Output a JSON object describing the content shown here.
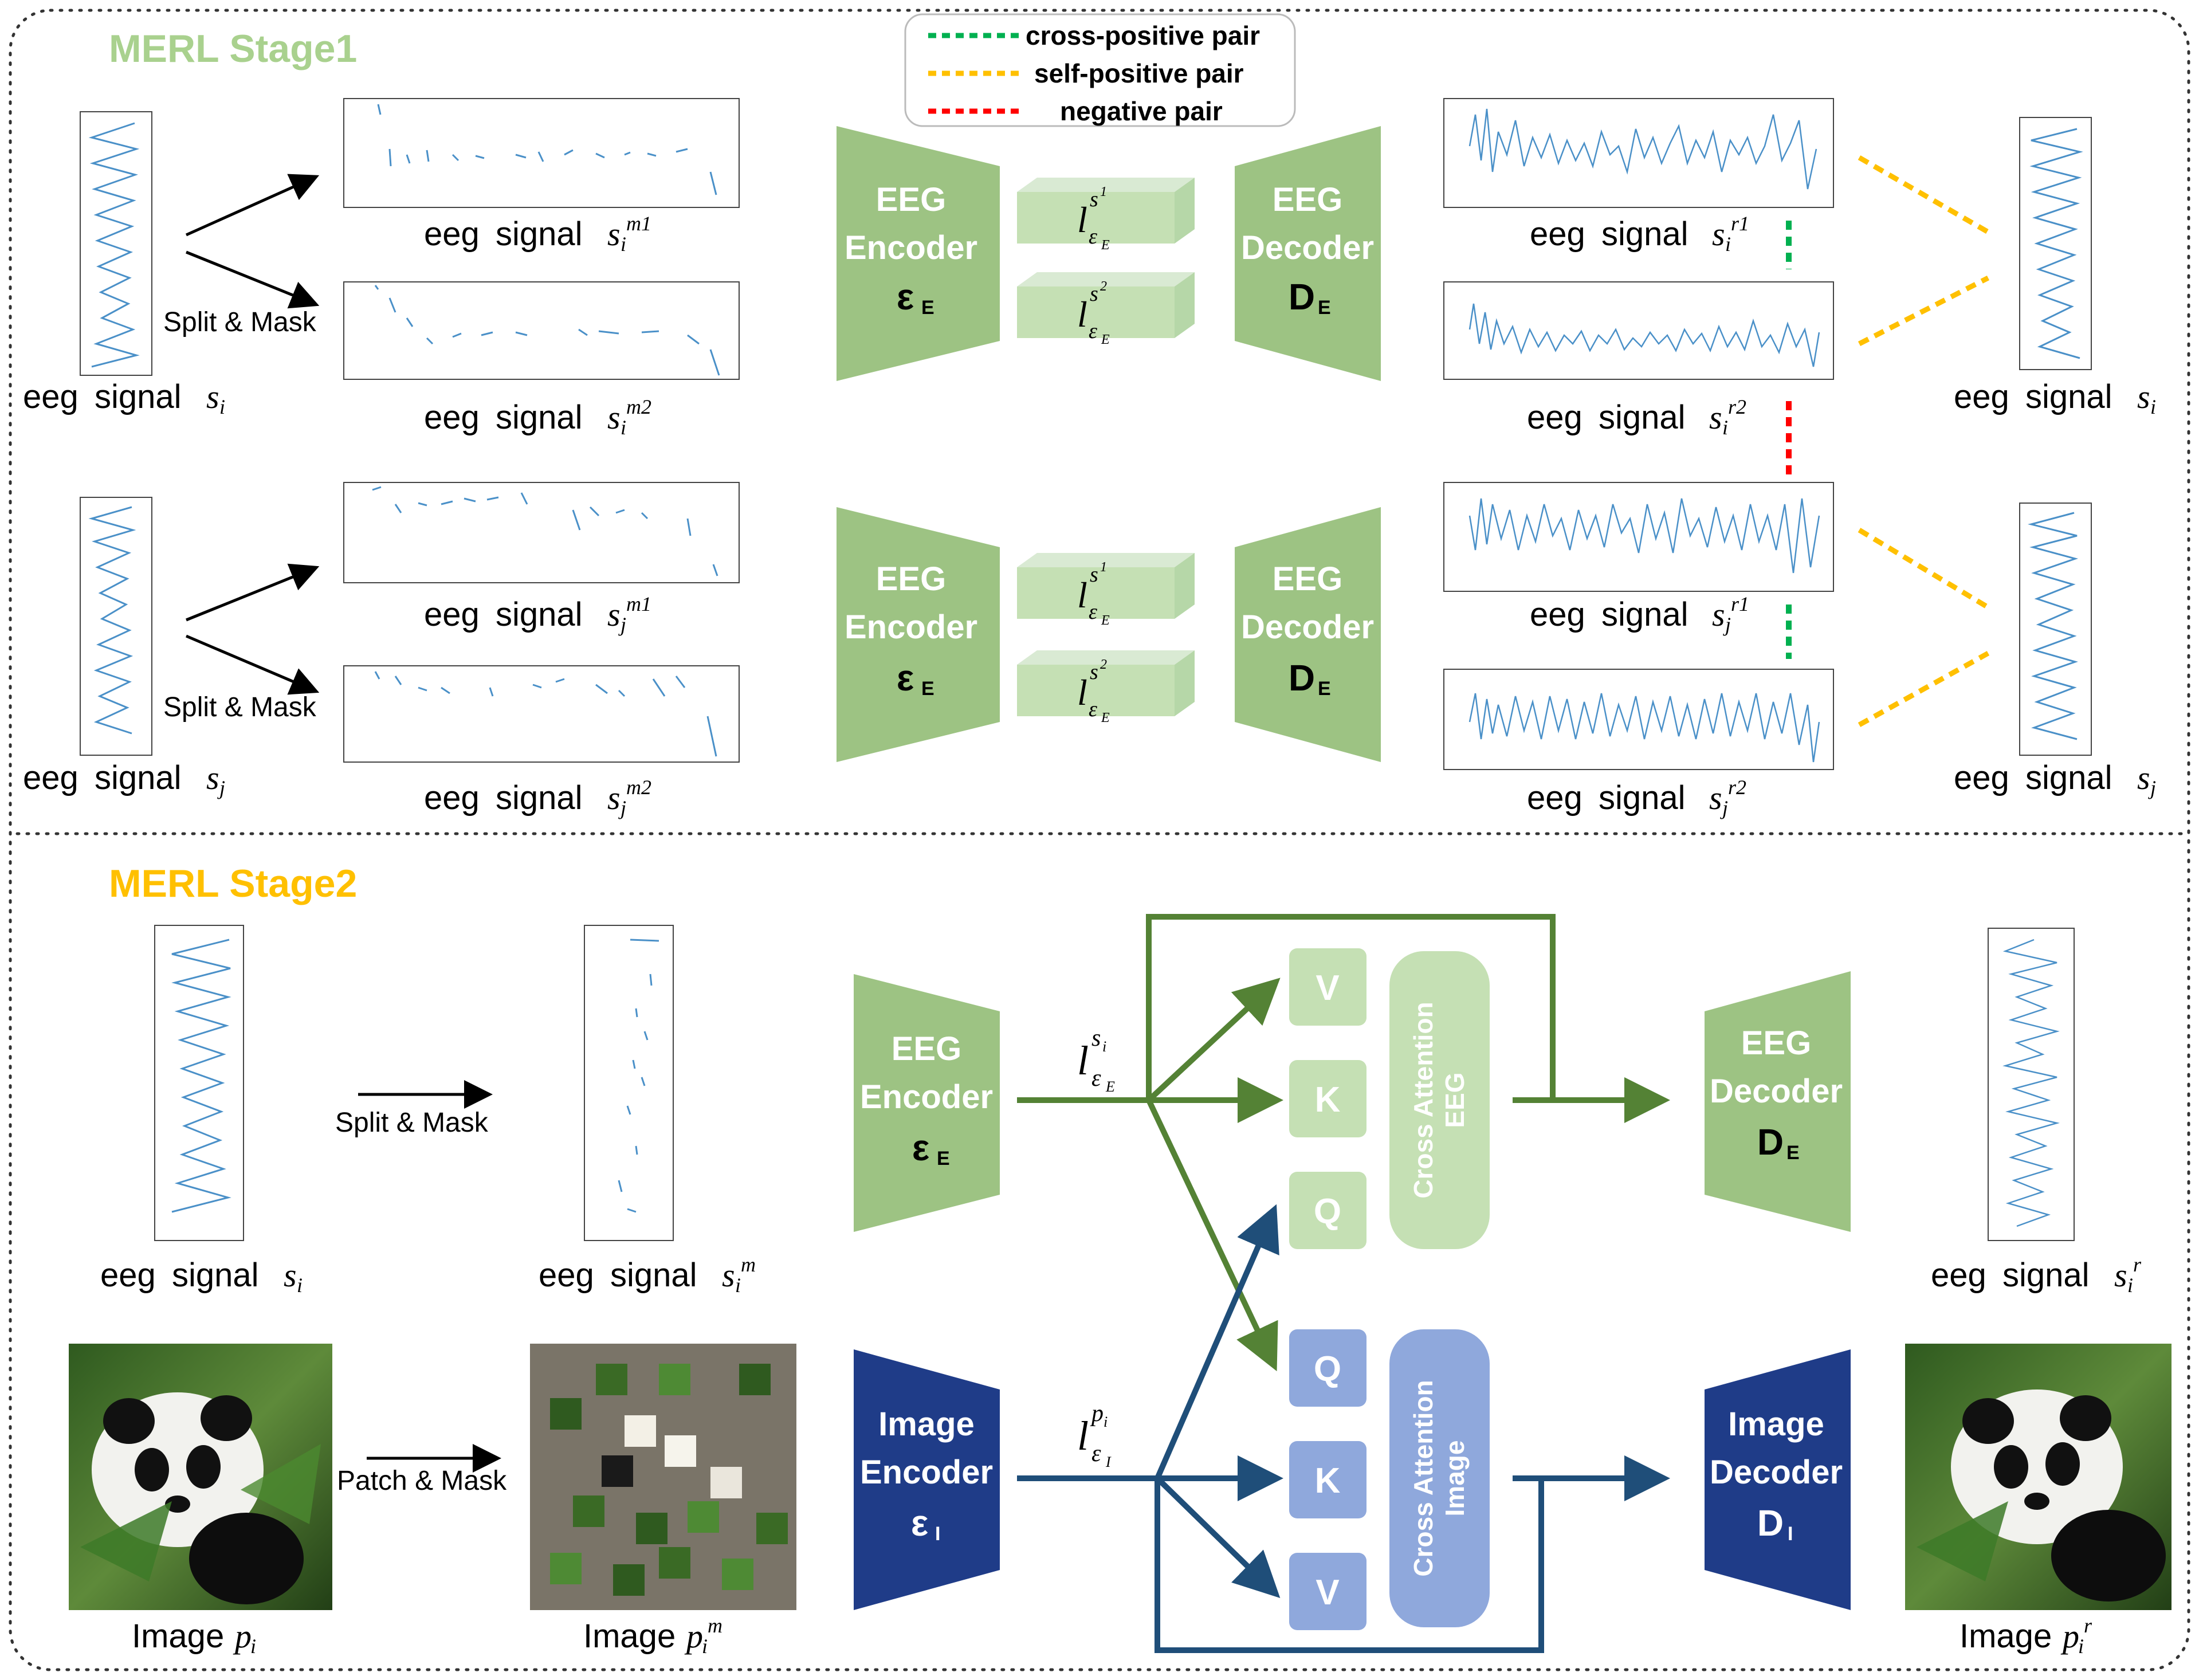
{
  "stage1": {
    "title": "MERL Stage1",
    "legend": {
      "cross_positive": "cross-positive pair",
      "self_positive": "self-positive pair",
      "negative": "negative pair"
    },
    "split_mask": "Split & Mask",
    "caption_prefix": "eeg",
    "caption_word": "signal",
    "sym_si": "s",
    "sub_i": "i",
    "sub_j": "j",
    "sup_m1": "m1",
    "sup_m2": "m2",
    "sup_r1": "r1",
    "sup_r2": "r2",
    "eeg_encoder_l1": "EEG",
    "eeg_encoder_l2": "Encoder",
    "eeg_encoder_sym": "ε",
    "eeg_encoder_sub": "E",
    "eeg_decoder_l1": "EEG",
    "eeg_decoder_l2": "Decoder",
    "eeg_decoder_sym": "D",
    "eeg_decoder_sub": "E",
    "latent_l": "l",
    "latent_sub": "ε",
    "latent_subsub": "E",
    "latent_sup_1": "1",
    "latent_sup_2": "2"
  },
  "stage2": {
    "title": "MERL Stage2",
    "split_mask": "Split & Mask",
    "patch_mask": "Patch & Mask",
    "image_word": "Image",
    "image_sym": "p",
    "sup_m": "m",
    "sup_r": "r",
    "image_encoder_l1": "Image",
    "image_encoder_l2": "Encoder",
    "image_encoder_sym": "ε",
    "image_encoder_sub": "I",
    "image_decoder_l1": "Image",
    "image_decoder_l2": "Decoder",
    "image_decoder_sym": "D",
    "image_decoder_sub": "I",
    "v": "V",
    "k": "K",
    "q": "Q",
    "ca_eeg_l1": "Cross Attention",
    "ca_eeg_l2": "EEG",
    "ca_img_l1": "Cross Attention",
    "ca_img_l2": "Image",
    "latent_img_sub": "I"
  },
  "colors": {
    "green_block": "#9dc383",
    "light_green": "#c5e0b4",
    "dark_green": "#548235",
    "navy": "#1f3c88",
    "blue_block": "#8fa8dc",
    "blue_arrow": "#1f4e79",
    "stage1_green": "#a9d18e",
    "stage2_yellow": "#ffc000",
    "cross_green": "#00b050",
    "self_yellow": "#ffc000",
    "neg_red": "#ff0000"
  }
}
